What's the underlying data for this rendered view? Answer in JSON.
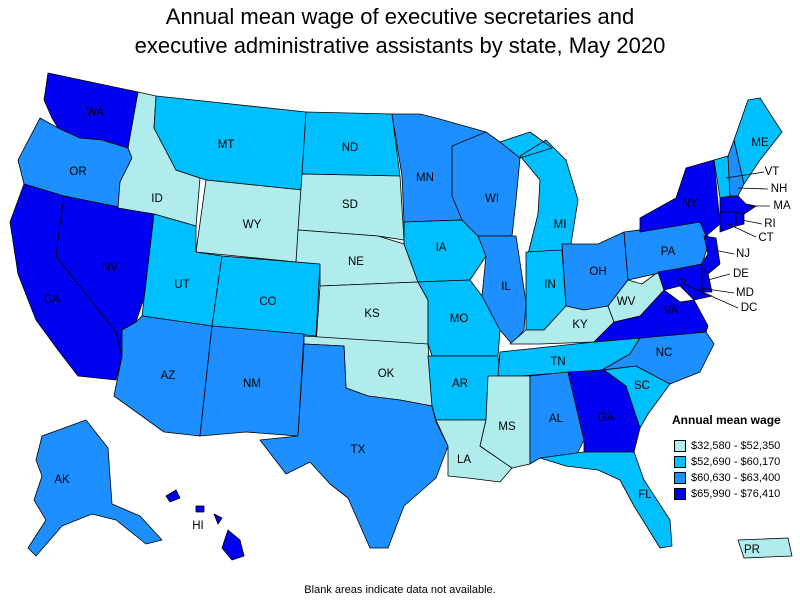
{
  "title_line1": "Annual mean wage of executive secretaries and",
  "title_line2": "executive administrative assistants by state, May 2020",
  "legend": {
    "title": "Annual mean wage",
    "ranges": [
      {
        "label": "$32,580 - $52,350",
        "color": "#b0ecec"
      },
      {
        "label": "$52,690 - $60,170",
        "color": "#00bfff"
      },
      {
        "label": "$60,630 - $63,400",
        "color": "#1e8fff"
      },
      {
        "label": "$65,990 - $76,410",
        "color": "#0000f2"
      }
    ]
  },
  "footnote": "Blank areas indicate data not available.",
  "states": [
    {
      "abbr": "WA",
      "class": 3
    },
    {
      "abbr": "OR",
      "class": 2
    },
    {
      "abbr": "CA",
      "class": 3
    },
    {
      "abbr": "NV",
      "class": 3
    },
    {
      "abbr": "ID",
      "class": 0
    },
    {
      "abbr": "MT",
      "class": 1
    },
    {
      "abbr": "WY",
      "class": 0
    },
    {
      "abbr": "UT",
      "class": 1
    },
    {
      "abbr": "CO",
      "class": 1
    },
    {
      "abbr": "AZ",
      "class": 2
    },
    {
      "abbr": "NM",
      "class": 2
    },
    {
      "abbr": "ND",
      "class": 1
    },
    {
      "abbr": "SD",
      "class": 0
    },
    {
      "abbr": "NE",
      "class": 0
    },
    {
      "abbr": "KS",
      "class": 0
    },
    {
      "abbr": "OK",
      "class": 0
    },
    {
      "abbr": "TX",
      "class": 2
    },
    {
      "abbr": "MN",
      "class": 2
    },
    {
      "abbr": "IA",
      "class": 1
    },
    {
      "abbr": "MO",
      "class": 1
    },
    {
      "abbr": "AR",
      "class": 1
    },
    {
      "abbr": "LA",
      "class": 0
    },
    {
      "abbr": "WI",
      "class": 2
    },
    {
      "abbr": "IL",
      "class": 2
    },
    {
      "abbr": "MI",
      "class": 1
    },
    {
      "abbr": "IN",
      "class": 1
    },
    {
      "abbr": "OH",
      "class": 2
    },
    {
      "abbr": "KY",
      "class": 0
    },
    {
      "abbr": "TN",
      "class": 1
    },
    {
      "abbr": "MS",
      "class": 0
    },
    {
      "abbr": "AL",
      "class": 2
    },
    {
      "abbr": "GA",
      "class": 3
    },
    {
      "abbr": "FL",
      "class": 1
    },
    {
      "abbr": "SC",
      "class": 1
    },
    {
      "abbr": "NC",
      "class": 2
    },
    {
      "abbr": "VA",
      "class": 3
    },
    {
      "abbr": "WV",
      "class": 0
    },
    {
      "abbr": "PA",
      "class": 2
    },
    {
      "abbr": "NY",
      "class": 3
    },
    {
      "abbr": "ME",
      "class": 1
    },
    {
      "abbr": "VT",
      "class": 1
    },
    {
      "abbr": "NH",
      "class": 2
    },
    {
      "abbr": "MA",
      "class": 3
    },
    {
      "abbr": "RI",
      "class": 3
    },
    {
      "abbr": "CT",
      "class": 3
    },
    {
      "abbr": "NJ",
      "class": 3
    },
    {
      "abbr": "DE",
      "class": 3
    },
    {
      "abbr": "MD",
      "class": 3
    },
    {
      "abbr": "DC",
      "class": 3
    },
    {
      "abbr": "AK",
      "class": 2
    },
    {
      "abbr": "HI",
      "class": 3
    },
    {
      "abbr": "PR",
      "class": 0
    }
  ]
}
